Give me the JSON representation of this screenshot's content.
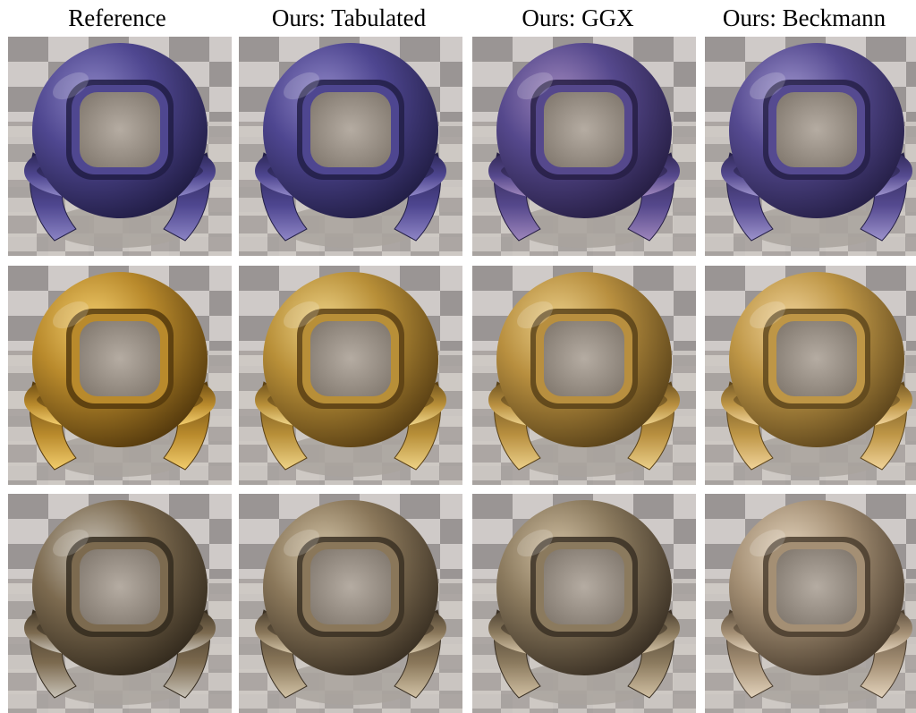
{
  "figure": {
    "columns": [
      {
        "label": "Reference"
      },
      {
        "label": "Ours: Tabulated"
      },
      {
        "label": "Ours: GGX"
      },
      {
        "label": "Ours: Beckmann"
      }
    ],
    "rows": [
      {
        "material": "purple-metal",
        "colors": [
          "#4f4790",
          "#4e4690",
          "#55488c",
          "#554a90"
        ],
        "highlight": [
          "#8b84c4",
          "#8f86c6",
          "#9e86bc",
          "#9d93cc"
        ],
        "dark": [
          "#211d45",
          "#221e46",
          "#271f45",
          "#262048"
        ]
      },
      {
        "material": "gold-metal",
        "colors": [
          "#b98a2c",
          "#b88f38",
          "#b88f3f",
          "#be9646"
        ],
        "highlight": [
          "#f2cd6d",
          "#efd488",
          "#ecd08a",
          "#f1d49a"
        ],
        "dark": [
          "#553a0d",
          "#5a4014",
          "#594219",
          "#5e461c"
        ]
      },
      {
        "material": "bronze-metal",
        "colors": [
          "#7c6a4f",
          "#8a775a",
          "#8b7a5e",
          "#a48f74"
        ],
        "highlight": [
          "#c9c3b8",
          "#d2c3a6",
          "#d1c0a3",
          "#e3d3bc"
        ],
        "dark": [
          "#342b1e",
          "#3a3023",
          "#3a3024",
          "#4a3d2e"
        ]
      }
    ]
  }
}
